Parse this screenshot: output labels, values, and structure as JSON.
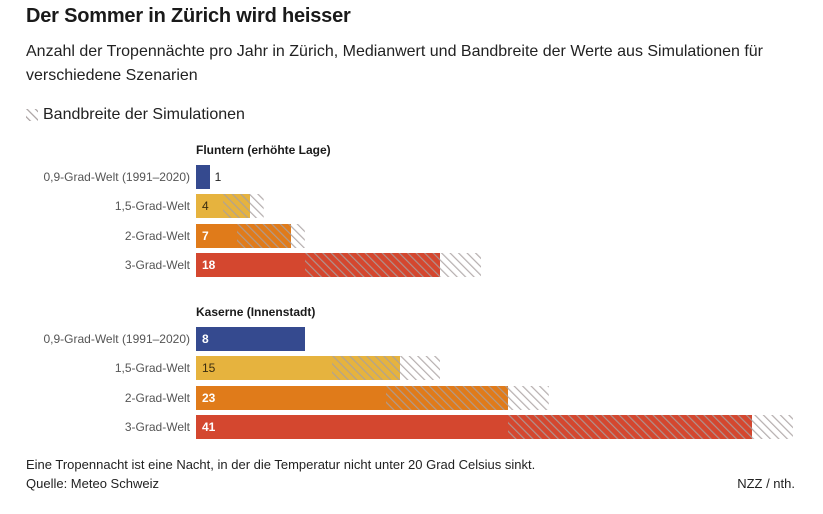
{
  "title": "Der Sommer in Zürich wird heisser",
  "subtitle": "Anzahl der Tropennächte pro Jahr in Zürich, Medianwert und Bandbreite der Werte aus Simulationen für verschiedene Szenarien",
  "legend_label": "Bandbreite der Simulationen",
  "note": "Eine Tropennacht ist eine Nacht, in der die Temperatur nicht unter 20 Grad Celsius sinkt.",
  "source": "Quelle: Meteo Schweiz",
  "credit": "NZZ / nth.",
  "colors": {
    "0,9-Grad-Welt (1991–2020)": "#354a8f",
    "1,5-Grad-Welt": "#e6b33e",
    "2-Grad-Welt": "#e07b1a",
    "3-Grad-Welt": "#d4472f",
    "hatch": "#b4acaa"
  },
  "chart_data": {
    "type": "bar",
    "orientation": "horizontal",
    "title": "Der Sommer in Zürich wird heisser",
    "subtitle": "Anzahl der Tropennächte pro Jahr in Zürich, Medianwert und Bandbreite der Werte aus Simulationen für verschiedene Szenarien",
    "xlim": [
      0,
      44
    ],
    "groups": [
      {
        "name": "Fluntern (erhöhte Lage)",
        "rows": [
          {
            "label": "0,9-Grad-Welt (1991–2020)",
            "median": 1,
            "range": [
              1,
              1
            ]
          },
          {
            "label": "1,5-Grad-Welt",
            "median": 4,
            "range": [
              2,
              5
            ]
          },
          {
            "label": "2-Grad-Welt",
            "median": 7,
            "range": [
              3,
              8
            ]
          },
          {
            "label": "3-Grad-Welt",
            "median": 18,
            "range": [
              8,
              21
            ]
          }
        ]
      },
      {
        "name": "Kaserne (Innenstadt)",
        "rows": [
          {
            "label": "0,9-Grad-Welt (1991–2020)",
            "median": 8,
            "range": [
              8,
              8
            ]
          },
          {
            "label": "1,5-Grad-Welt",
            "median": 15,
            "range": [
              10,
              18
            ]
          },
          {
            "label": "2-Grad-Welt",
            "median": 23,
            "range": [
              14,
              26
            ]
          },
          {
            "label": "3-Grad-Welt",
            "median": 41,
            "range": [
              23,
              44
            ]
          }
        ]
      }
    ]
  }
}
